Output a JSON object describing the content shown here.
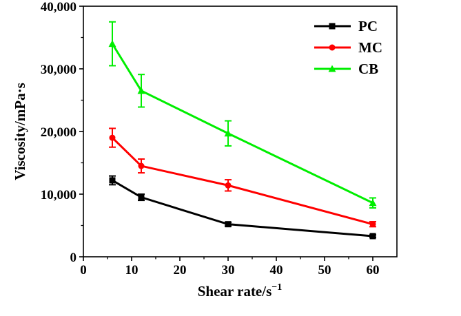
{
  "chart_data": {
    "type": "line",
    "xlabel": "Shear rate/s",
    "xlabel_superscript": "−1",
    "ylabel": "Viscosity/mPa·s",
    "xlim": [
      0,
      65
    ],
    "ylim": [
      0,
      40000
    ],
    "xticks": [
      0,
      10,
      20,
      30,
      40,
      50,
      60
    ],
    "yticks": [
      0,
      10000,
      20000,
      30000,
      40000
    ],
    "xtick_labels": [
      "0",
      "10",
      "20",
      "30",
      "40",
      "50",
      "60"
    ],
    "ytick_labels": [
      "0",
      "10,000",
      "20,000",
      "30,000",
      "40,000"
    ],
    "grid": false,
    "legend_position": "top-right",
    "x": [
      6,
      12,
      30,
      60
    ],
    "series": [
      {
        "name": "PC",
        "color": "#000000",
        "marker": "square",
        "values": [
          12200,
          9500,
          5200,
          3300
        ],
        "errors": [
          700,
          500,
          300,
          200
        ]
      },
      {
        "name": "MC",
        "color": "#ff0000",
        "marker": "circle",
        "values": [
          19000,
          14500,
          11400,
          5200
        ],
        "errors": [
          1500,
          1100,
          900,
          400
        ]
      },
      {
        "name": "CB",
        "color": "#00ee00",
        "marker": "triangle",
        "values": [
          34000,
          26500,
          19700,
          8600
        ],
        "errors": [
          3500,
          2600,
          2000,
          800
        ]
      }
    ]
  }
}
